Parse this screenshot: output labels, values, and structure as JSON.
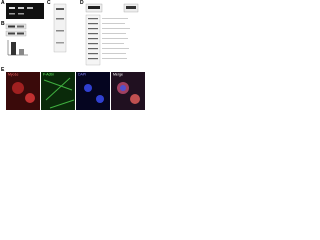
{
  "figure": {
    "panels": [
      {
        "letter": "A"
      },
      {
        "letter": "B"
      },
      {
        "letter": "C"
      },
      {
        "letter": "D"
      },
      {
        "letter": "E",
        "images": [
          "Myo1e",
          "F-Actin",
          "DAPI",
          "Merge"
        ]
      }
    ]
  }
}
